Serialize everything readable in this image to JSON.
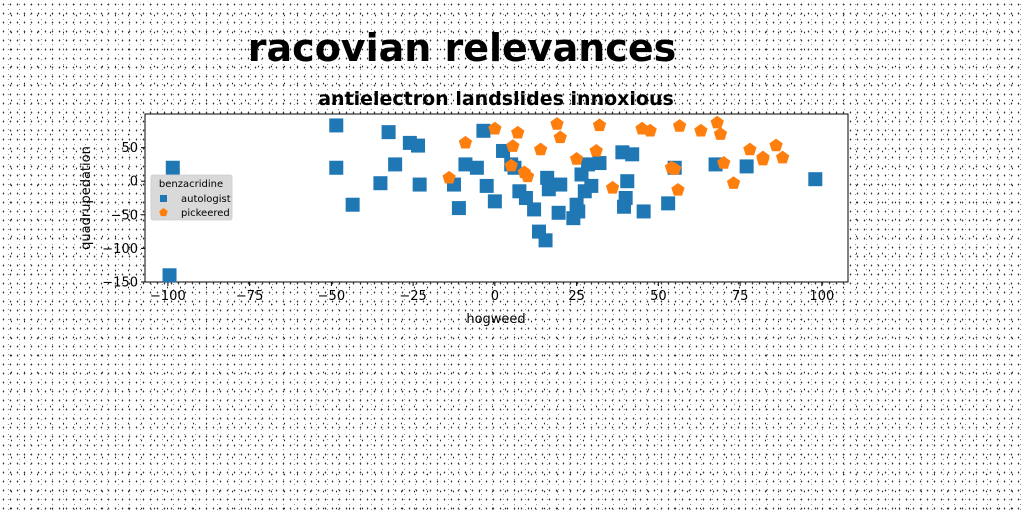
{
  "chart_data": {
    "type": "scatter",
    "title": "racovian relevances",
    "subtitle": "antielectron landslides innoxious",
    "xlabel": "hogweed",
    "ylabel": "quadrupedation",
    "xlim": [
      -107,
      108
    ],
    "ylim": [
      -150,
      100
    ],
    "xticks": [
      -100,
      -75,
      -50,
      -25,
      0,
      25,
      50,
      75,
      100
    ],
    "yticks": [
      50,
      0,
      -50,
      -100,
      -150
    ],
    "grid": false,
    "legend": {
      "title": "benzacridine",
      "placement": "center-left"
    },
    "series": [
      {
        "name": "autologist",
        "marker": "square",
        "color": "#1f77b4",
        "points": [
          [
            -98.5,
            20
          ],
          [
            -99.5,
            -140
          ],
          [
            -48.5,
            83
          ],
          [
            -48.5,
            20
          ],
          [
            -43.5,
            -35
          ],
          [
            -35,
            -3
          ],
          [
            -32.5,
            73
          ],
          [
            -30.5,
            25
          ],
          [
            -26,
            57
          ],
          [
            -23.5,
            53
          ],
          [
            -23,
            -5
          ],
          [
            -12.5,
            -5
          ],
          [
            -11,
            -40
          ],
          [
            -9,
            25
          ],
          [
            -5.5,
            20
          ],
          [
            -3.5,
            75
          ],
          [
            -2.5,
            -7
          ],
          [
            0,
            -30
          ],
          [
            2.5,
            45
          ],
          [
            5,
            25
          ],
          [
            6,
            20
          ],
          [
            7.5,
            -15
          ],
          [
            9.5,
            -25
          ],
          [
            12,
            -42
          ],
          [
            13.5,
            -75
          ],
          [
            15.5,
            -88
          ],
          [
            16,
            5
          ],
          [
            16.5,
            -12
          ],
          [
            19.5,
            -47
          ],
          [
            20,
            -5
          ],
          [
            24,
            -55
          ],
          [
            25,
            -35
          ],
          [
            25.5,
            -45
          ],
          [
            26.5,
            10
          ],
          [
            27.5,
            -15
          ],
          [
            28.5,
            25
          ],
          [
            29.5,
            -7
          ],
          [
            32,
            27
          ],
          [
            39,
            43
          ],
          [
            39.5,
            -38
          ],
          [
            40,
            -25
          ],
          [
            40.5,
            0
          ],
          [
            42,
            40
          ],
          [
            45.5,
            -45
          ],
          [
            53,
            -33
          ],
          [
            55,
            20
          ],
          [
            67.5,
            25
          ],
          [
            77,
            22
          ],
          [
            98,
            3
          ]
        ]
      },
      {
        "name": "pickeered",
        "marker": "pentagon",
        "color": "#ff7f0e",
        "points": [
          [
            -14,
            5
          ],
          [
            -9,
            57
          ],
          [
            0,
            78
          ],
          [
            5,
            23
          ],
          [
            5.5,
            52
          ],
          [
            7,
            72
          ],
          [
            9,
            13
          ],
          [
            10,
            7
          ],
          [
            14,
            47
          ],
          [
            19,
            85
          ],
          [
            20,
            65
          ],
          [
            25,
            33
          ],
          [
            31,
            45
          ],
          [
            32,
            83
          ],
          [
            36,
            -10
          ],
          [
            45,
            78
          ],
          [
            47.5,
            75
          ],
          [
            54,
            20
          ],
          [
            55,
            18
          ],
          [
            56,
            -13
          ],
          [
            56.5,
            82
          ],
          [
            63,
            75
          ],
          [
            68,
            87
          ],
          [
            69,
            70
          ],
          [
            70,
            27
          ],
          [
            73,
            -3
          ],
          [
            78,
            47
          ],
          [
            82,
            35
          ],
          [
            82,
            32
          ],
          [
            86,
            53
          ],
          [
            88,
            35
          ]
        ]
      }
    ]
  }
}
